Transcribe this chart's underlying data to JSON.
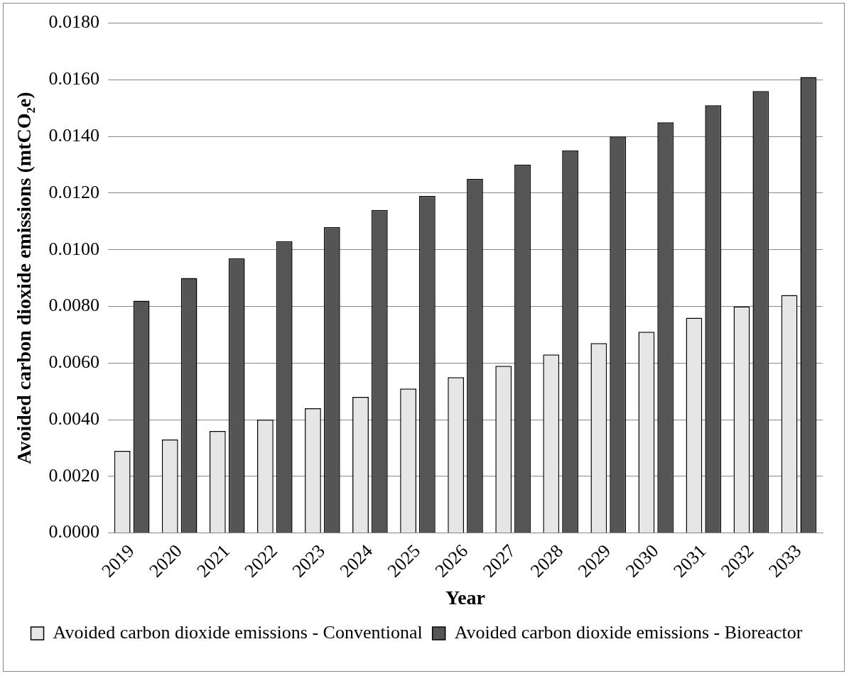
{
  "chart_data": {
    "type": "bar",
    "xlabel": "Year",
    "ylabel": "Avoided carbon dioxide emissions (mtCO₂e)",
    "categories": [
      "2019",
      "2020",
      "2021",
      "2022",
      "2023",
      "2024",
      "2025",
      "2026",
      "2027",
      "2028",
      "2029",
      "2030",
      "2031",
      "2032",
      "2033"
    ],
    "series": [
      {
        "name": "Avoided carbon dioxide emissions - Conventional",
        "color": "#e6e6e6",
        "values": [
          0.0029,
          0.0033,
          0.0036,
          0.004,
          0.0044,
          0.0048,
          0.0051,
          0.0055,
          0.0059,
          0.0063,
          0.0067,
          0.0071,
          0.0076,
          0.008,
          0.0084
        ]
      },
      {
        "name": "Avoided carbon dioxide emissions - Bioreactor",
        "color": "#555555",
        "values": [
          0.0082,
          0.009,
          0.0097,
          0.0103,
          0.0108,
          0.0114,
          0.0119,
          0.0125,
          0.013,
          0.0135,
          0.014,
          0.0145,
          0.0151,
          0.0156,
          0.0161
        ]
      }
    ],
    "ylim": [
      0,
      0.018
    ],
    "yticks": [
      {
        "value": 0,
        "label": "0.0000"
      },
      {
        "value": 0.002,
        "label": "0.0020"
      },
      {
        "value": 0.004,
        "label": "0.0040"
      },
      {
        "value": 0.006,
        "label": "0.0060"
      },
      {
        "value": 0.008,
        "label": "0.0080"
      },
      {
        "value": 0.01,
        "label": "0.0100"
      },
      {
        "value": 0.012,
        "label": "0.0120"
      },
      {
        "value": 0.014,
        "label": "0.0140"
      },
      {
        "value": 0.016,
        "label": "0.0160"
      },
      {
        "value": 0.018,
        "label": "0.0180"
      }
    ],
    "grid": "y",
    "legend": "bottom"
  }
}
